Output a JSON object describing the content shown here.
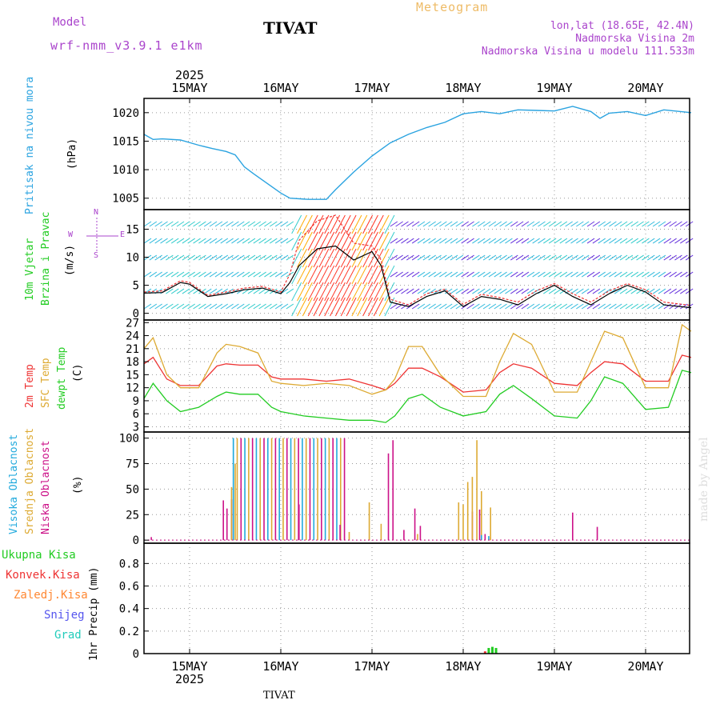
{
  "header": {
    "model_label": "Model",
    "model_name": "wrf-nmm_v3.9.1 e1km",
    "station": "TIVAT",
    "chart_title": "Meteogram",
    "coords": "lon,lat (18.65E, 42.4N)",
    "altitude": "Nadmorska Visina 2m",
    "model_altitude": "Nadmorska Visina u modelu 111.533m"
  },
  "footer": {
    "station": "TIVAT",
    "credit": "made by Angel"
  },
  "colors": {
    "pressure": "#2aa3e0",
    "wind_label": "#22cc22",
    "temp2m": "#ee3333",
    "sfc": "#ddaa33",
    "dew": "#22cc22",
    "high_cloud": "#22aadd",
    "mid_cloud": "#ddaa33",
    "low_cloud": "#cc1188",
    "total_precip": "#22cc22",
    "conv_precip": "#ee3333",
    "frz_precip": "#ff8833",
    "snow": "#5555ee",
    "grad": "#22ccbb",
    "wind_dir_compass": "#aa44cc",
    "header_purple": "#aa44cc"
  },
  "chart_data": [
    {
      "type": "line",
      "panel": "pressure",
      "ylabel_1": "Pritisak na nivou mora",
      "ylabel_2": "(hPa)",
      "x_labels": [
        "15MAY",
        "16MAY",
        "17MAY",
        "18MAY",
        "19MAY",
        "20MAY"
      ],
      "year_label": "2025",
      "yticks": [
        1005,
        1010,
        1015,
        1020
      ],
      "ylim": [
        1003,
        1022.5
      ],
      "x": [
        -0.5,
        -0.4,
        -0.3,
        -0.1,
        0.1,
        0.25,
        0.4,
        0.5,
        0.6,
        0.7,
        0.85,
        1.0,
        1.1,
        1.3,
        1.5,
        1.6,
        1.8,
        2.0,
        2.2,
        2.4,
        2.6,
        2.8,
        3.0,
        3.2,
        3.4,
        3.6,
        3.8,
        4.0,
        4.2,
        4.4,
        4.5,
        4.6,
        4.8,
        5.0,
        5.2,
        5.5
      ],
      "y": [
        1016.2,
        1015.3,
        1015.4,
        1015.2,
        1014.3,
        1013.7,
        1013.2,
        1012.6,
        1010.5,
        1009.3,
        1007.6,
        1005.9,
        1005.0,
        1004.8,
        1004.8,
        1006.5,
        1009.6,
        1012.4,
        1014.7,
        1016.2,
        1017.4,
        1018.3,
        1019.8,
        1020.2,
        1019.8,
        1020.5,
        1020.4,
        1020.3,
        1021.1,
        1020.2,
        1019.0,
        1019.9,
        1020.2,
        1019.5,
        1020.5,
        1020.0
      ]
    },
    {
      "type": "line",
      "panel": "wind",
      "ylabel_1": "10m Vjetar",
      "ylabel_2": "Brzina i Pravac",
      "ylabel_3": "(m/s)",
      "compass": "N",
      "compass_w": "W",
      "compass_e": "E",
      "compass_s": "S",
      "yticks": [
        0,
        5,
        10,
        15
      ],
      "ylim": [
        -1.2,
        18.5
      ],
      "x": [
        -0.5,
        -0.3,
        -0.1,
        0.0,
        0.2,
        0.4,
        0.6,
        0.8,
        1.0,
        1.1,
        1.2,
        1.4,
        1.6,
        1.8,
        2.0,
        2.1,
        2.2,
        2.4,
        2.6,
        2.8,
        3.0,
        3.2,
        3.4,
        3.6,
        3.8,
        4.0,
        4.2,
        4.4,
        4.6,
        4.8,
        5.0,
        5.2,
        5.5
      ],
      "speed": [
        3.6,
        3.7,
        5.5,
        5.2,
        3.0,
        3.5,
        4.2,
        4.5,
        3.5,
        5.5,
        8.5,
        11.5,
        12.0,
        9.5,
        11.0,
        8.5,
        2.0,
        1.2,
        3.0,
        4.0,
        1.2,
        3.0,
        2.5,
        1.5,
        3.5,
        5.0,
        3.0,
        1.5,
        3.5,
        5.0,
        3.8,
        1.5,
        1.0
      ],
      "gust": [
        3.8,
        4.0,
        5.8,
        5.5,
        3.2,
        3.8,
        4.5,
        4.8,
        3.8,
        7.0,
        13.0,
        16.5,
        17.5,
        12.5,
        12.0,
        9.5,
        2.5,
        1.5,
        3.5,
        4.3,
        1.6,
        3.4,
        2.8,
        2.0,
        4.0,
        5.3,
        3.5,
        2.0,
        4.0,
        5.3,
        4.2,
        2.0,
        1.4
      ]
    },
    {
      "type": "line",
      "panel": "temperature",
      "ylabel_1": "2m Temp",
      "ylabel_2": "SFC Temp",
      "ylabel_3": "dewpt Temp",
      "ylabel_4": "(C)",
      "yticks": [
        3,
        6,
        9,
        12,
        15,
        18,
        21,
        24,
        27
      ],
      "ylim": [
        1.8,
        27.6
      ],
      "x": [
        -0.5,
        -0.4,
        -0.25,
        -0.1,
        0.1,
        0.3,
        0.4,
        0.55,
        0.75,
        0.9,
        1.0,
        1.25,
        1.5,
        1.75,
        2.0,
        2.15,
        2.25,
        2.4,
        2.55,
        2.75,
        3.0,
        3.25,
        3.4,
        3.55,
        3.75,
        4.0,
        4.25,
        4.4,
        4.55,
        4.75,
        5.0,
        5.25,
        5.4,
        5.5
      ],
      "series": [
        {
          "name": "2m Temp",
          "values": [
            17.5,
            19.0,
            14.0,
            12.5,
            12.5,
            17.0,
            17.5,
            17.2,
            17.2,
            14.5,
            14.0,
            14.0,
            13.5,
            14.0,
            12.5,
            11.5,
            13.0,
            16.5,
            16.5,
            14.5,
            11.0,
            11.5,
            15.5,
            17.5,
            16.5,
            13.0,
            12.5,
            15.5,
            18.0,
            17.5,
            13.5,
            13.5,
            19.5,
            19.0
          ]
        },
        {
          "name": "SFC Temp",
          "values": [
            21.0,
            23.5,
            15.0,
            12.0,
            12.0,
            20.0,
            22.0,
            21.5,
            20.0,
            13.5,
            13.0,
            12.5,
            13.0,
            12.5,
            10.5,
            11.5,
            14.0,
            21.5,
            21.5,
            15.0,
            10.0,
            10.0,
            18.0,
            24.5,
            22.0,
            11.0,
            11.0,
            18.0,
            25.0,
            23.5,
            12.0,
            12.0,
            26.5,
            25.0
          ]
        },
        {
          "name": "dewpt Temp",
          "values": [
            9.5,
            13.0,
            9.0,
            6.5,
            7.5,
            10.0,
            11.0,
            10.5,
            10.5,
            7.5,
            6.5,
            5.5,
            5.0,
            4.5,
            4.5,
            4.0,
            5.5,
            9.5,
            10.5,
            7.5,
            5.5,
            6.5,
            10.5,
            12.5,
            9.5,
            5.5,
            5.0,
            9.0,
            14.5,
            13.0,
            7.0,
            7.5,
            16.0,
            15.5
          ]
        }
      ]
    },
    {
      "type": "bar",
      "panel": "cloud",
      "ylabel_1": "Visoka Oblacnost",
      "ylabel_2": "Srednja Oblacnost",
      "ylabel_3": "Niska Oblacnost",
      "ylabel_4": "(%)",
      "yticks": [
        0,
        25,
        50,
        75,
        100
      ],
      "ylim": [
        -3,
        106
      ],
      "full_cover_start": 0.48,
      "full_cover_end": 1.7,
      "full_cover_value": 100,
      "series": [
        {
          "name": "Niska Oblacnost",
          "x": [
            -0.42,
            0.37,
            0.41,
            0.46,
            1.2,
            1.65,
            2.18,
            2.23,
            2.35,
            2.47,
            2.53,
            3.1,
            3.18,
            3.24,
            3.3,
            4.2,
            4.47
          ],
          "values": [
            3,
            39,
            31,
            40,
            35,
            15,
            85,
            98,
            10,
            31,
            14,
            28,
            30,
            6,
            3,
            27,
            13
          ]
        },
        {
          "name": "Srednja Oblacnost",
          "x": [
            0.46,
            0.5,
            1.75,
            1.97,
            2.1,
            2.5,
            2.95,
            3.0,
            3.05,
            3.1,
            3.15,
            3.2,
            3.3
          ],
          "values": [
            52,
            75,
            8,
            37,
            16,
            6,
            37,
            35,
            57,
            62,
            98,
            48,
            32
          ]
        },
        {
          "name": "Visoka Oblacnost",
          "x": [
            0.48,
            3.2,
            3.28
          ],
          "values": [
            100,
            5,
            4
          ]
        }
      ]
    },
    {
      "type": "bar",
      "panel": "precip",
      "ylabel_1": "1hr Precip (mm)",
      "legend": [
        "Ukupna Kisa",
        "Konvek.Kisa",
        "Zaledj.Kisa",
        "Snijeg",
        "Grad"
      ],
      "yticks": [
        0,
        0.2,
        0.4,
        0.6,
        0.8
      ],
      "ylim": [
        0,
        0.98
      ],
      "series": [
        {
          "name": "Ukupna Kisa",
          "x": [
            3.28,
            3.32,
            3.36
          ],
          "values": [
            0.05,
            0.06,
            0.05
          ]
        },
        {
          "name": "Konvek.Kisa",
          "x": [
            3.24
          ],
          "values": [
            0.02
          ]
        }
      ]
    }
  ]
}
